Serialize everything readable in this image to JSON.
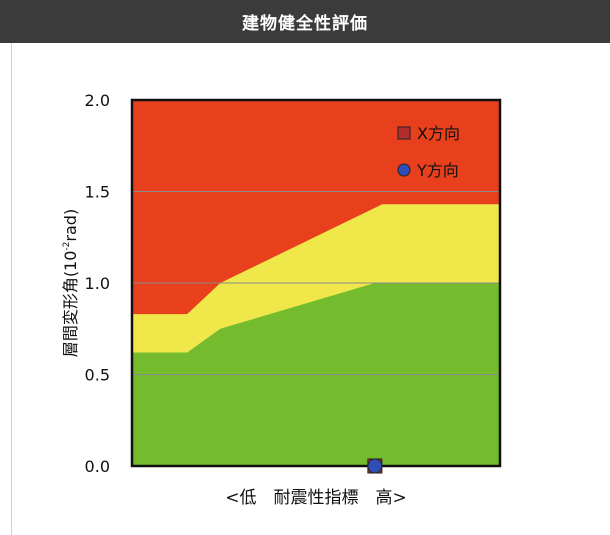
{
  "header": {
    "title": "建物健全性評価"
  },
  "chart_data": {
    "type": "area",
    "title": "建物健全性評価",
    "xlabel": "<低　耐震性指標　高>",
    "ylabel": "層間変形角(10",
    "ylabel_sup": "-2",
    "ylabel_suffix": "rad)",
    "ylim": [
      0,
      2.0
    ],
    "xlim": [
      0,
      1
    ],
    "yticks": [
      0.0,
      0.5,
      1.0,
      1.5,
      2.0
    ],
    "ytick_labels": [
      "0.0",
      "0.5",
      "1.0",
      "1.5",
      "2.0"
    ],
    "grid": true,
    "legend_position": "top-right",
    "zones": [
      {
        "name": "red",
        "color": "#e8401c",
        "boundary": {
          "x": [
            0,
            1
          ],
          "y": [
            2.0,
            2.0
          ]
        }
      },
      {
        "name": "yellow",
        "color": "#f0e84a",
        "boundary": {
          "x": [
            0,
            0.15,
            0.24,
            0.68,
            1.0
          ],
          "y": [
            0.83,
            0.83,
            1.0,
            1.43,
            1.43
          ]
        }
      },
      {
        "name": "green",
        "color": "#74bc2e",
        "boundary": {
          "x": [
            0,
            0.15,
            0.24,
            0.66,
            1.0
          ],
          "y": [
            0.62,
            0.62,
            0.75,
            1.0,
            1.0
          ]
        }
      }
    ],
    "series": [
      {
        "name": "X方向",
        "marker": "square",
        "color": "#b22e2e",
        "points": [
          {
            "x": 0.66,
            "y": 0.0
          }
        ]
      },
      {
        "name": "Y方向",
        "marker": "circle",
        "color": "#2f4fb8",
        "points": [
          {
            "x": 0.66,
            "y": 0.0
          }
        ]
      }
    ]
  }
}
